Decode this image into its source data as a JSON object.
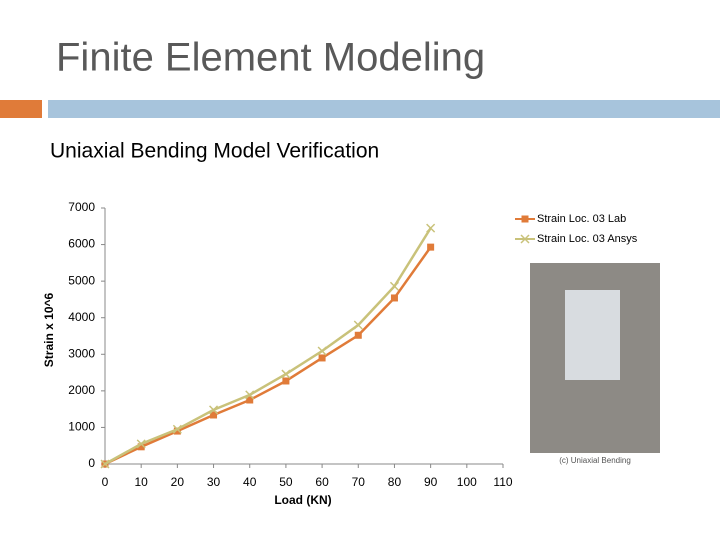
{
  "slide": {
    "title": "Finite Element Modeling",
    "subtitle": "Uniaxial Bending Model Verification",
    "image_caption": "(c) Uniaxial Bending"
  },
  "chart_data": {
    "type": "line",
    "x": [
      0,
      10,
      20,
      30,
      40,
      50,
      60,
      70,
      80,
      90
    ],
    "series": [
      {
        "name": "Strain Loc. 03 Lab",
        "color": "#e07b39",
        "marker": "square",
        "values": [
          0,
          470,
          900,
          1340,
          1750,
          2270,
          2900,
          3520,
          4540,
          5930
        ]
      },
      {
        "name": "Strain Loc. 03 Ansys",
        "color": "#c9c27a",
        "marker": "x",
        "values": [
          0,
          550,
          950,
          1480,
          1890,
          2460,
          3090,
          3800,
          4860,
          6450
        ]
      }
    ],
    "xlim": [
      0,
      110
    ],
    "xticks": [
      0,
      10,
      20,
      30,
      40,
      50,
      60,
      70,
      80,
      90,
      100,
      110
    ],
    "ylim": [
      0,
      7000
    ],
    "yticks": [
      0,
      1000,
      2000,
      3000,
      4000,
      5000,
      6000,
      7000
    ],
    "xlabel": "Load (KN)",
    "ylabel": "Strain x 10^6",
    "legend": "top-right"
  }
}
